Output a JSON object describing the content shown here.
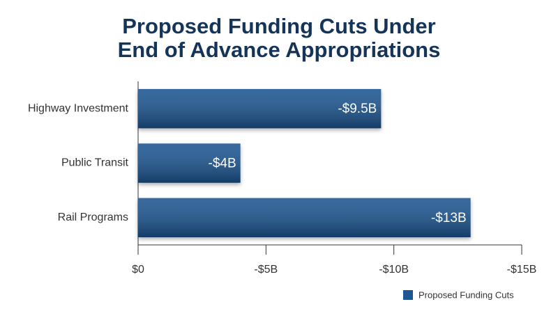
{
  "chart_data": {
    "type": "hbar",
    "title": [
      "Proposed Funding Cuts Under",
      "End of Advance Appropriations"
    ],
    "categories": [
      "Highway Investment",
      "Public Transit",
      "Rail Programs"
    ],
    "series": [
      {
        "name": "Proposed Funding Cuts",
        "color": "#1f5591",
        "values": [
          -9.5,
          -4,
          -13
        ],
        "value_labels": [
          "-$9.5B",
          "-$4B",
          "-$13B"
        ]
      }
    ],
    "xlim": [
      0,
      -15
    ],
    "xticks": [
      {
        "value": 0,
        "label": "$0"
      },
      {
        "value": -5,
        "label": "-$5B"
      },
      {
        "value": -10,
        "label": "-$10B"
      },
      {
        "value": -15,
        "label": "-$15B"
      }
    ],
    "legend": "bottom-right"
  }
}
